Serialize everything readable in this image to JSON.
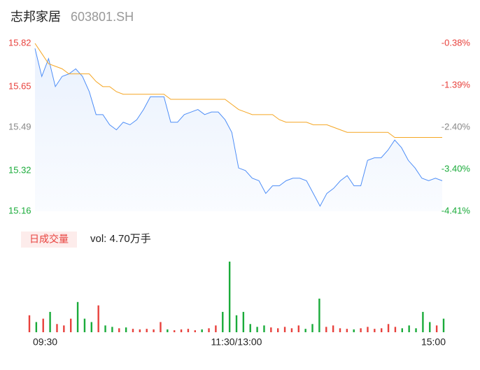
{
  "chart_data": [
    {
      "type": "line",
      "title": "志邦家居",
      "subtitle": "603801.SH",
      "x": [
        0,
        4,
        8,
        12,
        16,
        20,
        24,
        28,
        32,
        36,
        40,
        44,
        48,
        52,
        56,
        60,
        64,
        68,
        72,
        76,
        80,
        84,
        88,
        92,
        96,
        100,
        104,
        108,
        112,
        116,
        120,
        124,
        128,
        132,
        136,
        140,
        144,
        148,
        152,
        156,
        160,
        164,
        168,
        172,
        176,
        180,
        184,
        188,
        192,
        196,
        200,
        204,
        208,
        212,
        216,
        220,
        224,
        228,
        232,
        236,
        240
      ],
      "xlim": [
        0,
        240
      ],
      "series": [
        {
          "name": "price",
          "color": "#4e8ef7",
          "area": true,
          "values": [
            15.8,
            15.69,
            15.76,
            15.65,
            15.69,
            15.7,
            15.72,
            15.69,
            15.63,
            15.54,
            15.54,
            15.5,
            15.48,
            15.51,
            15.5,
            15.52,
            15.56,
            15.61,
            15.61,
            15.61,
            15.51,
            15.51,
            15.54,
            15.55,
            15.56,
            15.54,
            15.55,
            15.55,
            15.52,
            15.47,
            15.33,
            15.32,
            15.29,
            15.28,
            15.23,
            15.26,
            15.26,
            15.28,
            15.29,
            15.29,
            15.28,
            15.23,
            15.18,
            15.23,
            15.25,
            15.28,
            15.3,
            15.26,
            15.26,
            15.36,
            15.37,
            15.37,
            15.4,
            15.44,
            15.41,
            15.36,
            15.33,
            15.29,
            15.28,
            15.29,
            15.28
          ]
        },
        {
          "name": "average",
          "color": "#f5a623",
          "values": [
            15.82,
            15.78,
            15.74,
            15.73,
            15.72,
            15.7,
            15.7,
            15.7,
            15.7,
            15.67,
            15.65,
            15.65,
            15.63,
            15.62,
            15.62,
            15.62,
            15.62,
            15.62,
            15.62,
            15.62,
            15.6,
            15.6,
            15.6,
            15.6,
            15.6,
            15.6,
            15.6,
            15.6,
            15.6,
            15.58,
            15.56,
            15.55,
            15.54,
            15.54,
            15.54,
            15.54,
            15.52,
            15.51,
            15.51,
            15.51,
            15.51,
            15.5,
            15.5,
            15.5,
            15.49,
            15.48,
            15.47,
            15.47,
            15.47,
            15.47,
            15.47,
            15.47,
            15.47,
            15.45,
            15.45,
            15.45,
            15.45,
            15.45,
            15.45,
            15.45,
            15.45
          ]
        }
      ],
      "ylim": [
        15.16,
        15.82
      ],
      "yticks": [
        15.82,
        15.65,
        15.49,
        15.32,
        15.16
      ],
      "ytick_colors": [
        "#e8413c",
        "#e8413c",
        "#888888",
        "#1aab3a",
        "#1aab3a"
      ],
      "y2lim": [
        -4.41,
        -0.38
      ],
      "y2ticks": [
        {
          "value": -0.38,
          "label": "-0.38%"
        },
        {
          "value": -1.39,
          "label": "-1.39%"
        },
        {
          "value": -2.4,
          "label": "-2.40%"
        },
        {
          "value": -3.4,
          "label": "-3.40%"
        },
        {
          "value": -4.41,
          "label": "-4.41%"
        }
      ],
      "grid": false
    },
    {
      "type": "bar",
      "label": "日成交量",
      "annotation": "vol: 4.70万手",
      "x": [
        0,
        4,
        8,
        12,
        16,
        20,
        24,
        28,
        32,
        36,
        40,
        44,
        48,
        52,
        56,
        60,
        64,
        68,
        72,
        76,
        80,
        84,
        88,
        92,
        96,
        100,
        104,
        108,
        112,
        116,
        120,
        124,
        128,
        132,
        136,
        140,
        144,
        148,
        152,
        156,
        160,
        164,
        168,
        172,
        176,
        180,
        184,
        188,
        192,
        196,
        200,
        204,
        208,
        212,
        216,
        220,
        224,
        228,
        232,
        236,
        240
      ],
      "xlim": [
        0,
        240
      ],
      "xticks": [
        {
          "value": 0,
          "label": "09:30"
        },
        {
          "value": 120,
          "label": "11:30/13:00"
        },
        {
          "value": 240,
          "label": "15:00"
        }
      ],
      "values": [
        600,
        360,
        480,
        720,
        290,
        240,
        480,
        1070,
        480,
        360,
        950,
        240,
        190,
        140,
        170,
        120,
        100,
        120,
        100,
        360,
        100,
        70,
        100,
        120,
        70,
        100,
        140,
        240,
        720,
        2500,
        600,
        720,
        290,
        190,
        240,
        170,
        140,
        190,
        140,
        240,
        120,
        290,
        1190,
        190,
        240,
        140,
        120,
        100,
        140,
        190,
        120,
        140,
        290,
        190,
        140,
        240,
        140,
        720,
        360,
        240,
        480
      ],
      "ylim": [
        0,
        2600
      ],
      "up_color": "#e8413c",
      "down_color": "#1aab3a"
    }
  ]
}
